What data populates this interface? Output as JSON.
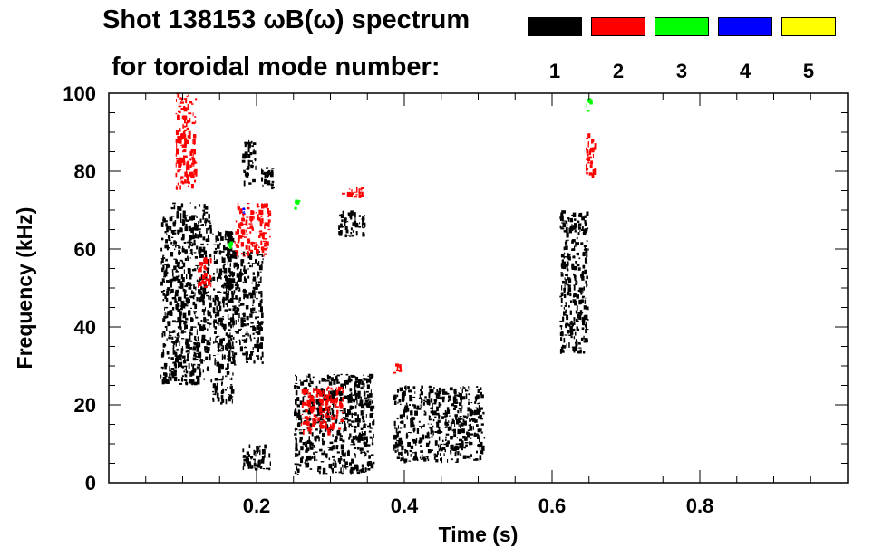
{
  "title_line1": "Shot 138153 ωB(ω) spectrum",
  "title_line2": "for toroidal mode number:",
  "legend": [
    {
      "mode": "1",
      "color": "#000000"
    },
    {
      "mode": "2",
      "color": "#ff0000"
    },
    {
      "mode": "3",
      "color": "#00ff00"
    },
    {
      "mode": "4",
      "color": "#0000ff"
    },
    {
      "mode": "5",
      "color": "#ffff00"
    }
  ],
  "chart_data": {
    "type": "heatmap",
    "title": "Shot 138153 ωB(ω) spectrum",
    "xlabel": "Time (s)",
    "ylabel": "Frequency (kHz)",
    "xlim": [
      0.0,
      1.0
    ],
    "ylim": [
      0,
      100
    ],
    "xticks": [
      0.2,
      0.4,
      0.6,
      0.8
    ],
    "xtick_labels": [
      "0.2",
      "0.4",
      "0.6",
      "0.8"
    ],
    "yticks": [
      0,
      20,
      40,
      60,
      80,
      100
    ],
    "ytick_labels": [
      "0",
      "20",
      "40",
      "60",
      "80",
      "100"
    ],
    "grid": false,
    "series": [
      {
        "name": "1",
        "color": "#000000",
        "regions": [
          {
            "t": [
              0.07,
              0.14
            ],
            "f": [
              25,
              72
            ]
          },
          {
            "t": [
              0.14,
              0.17
            ],
            "f": [
              20,
              65
            ]
          },
          {
            "t": [
              0.18,
              0.2
            ],
            "f": [
              76,
              88
            ]
          },
          {
            "t": [
              0.205,
              0.225
            ],
            "f": [
              75,
              82
            ]
          },
          {
            "t": [
              0.16,
              0.21
            ],
            "f": [
              30,
              60
            ]
          },
          {
            "t": [
              0.18,
              0.22
            ],
            "f": [
              3,
              10
            ]
          },
          {
            "t": [
              0.25,
              0.36
            ],
            "f": [
              2,
              28
            ]
          },
          {
            "t": [
              0.31,
              0.35
            ],
            "f": [
              63,
              70
            ]
          },
          {
            "t": [
              0.385,
              0.51
            ],
            "f": [
              5,
              25
            ]
          },
          {
            "t": [
              0.61,
              0.65
            ],
            "f": [
              33,
              70
            ]
          }
        ]
      },
      {
        "name": "2",
        "color": "#ff0000",
        "regions": [
          {
            "t": [
              0.09,
              0.12
            ],
            "f": [
              75,
              100
            ]
          },
          {
            "t": [
              0.12,
              0.14
            ],
            "f": [
              50,
              58
            ]
          },
          {
            "t": [
              0.17,
              0.22
            ],
            "f": [
              58,
              72
            ]
          },
          {
            "t": [
              0.315,
              0.345
            ],
            "f": [
              73,
              76
            ]
          },
          {
            "t": [
              0.26,
              0.32
            ],
            "f": [
              12,
              25
            ]
          },
          {
            "t": [
              0.385,
              0.4
            ],
            "f": [
              28,
              31
            ]
          },
          {
            "t": [
              0.645,
              0.66
            ],
            "f": [
              78,
              90
            ]
          }
        ]
      },
      {
        "name": "3",
        "color": "#00ff00",
        "regions": [
          {
            "t": [
              0.25,
              0.26
            ],
            "f": [
              70,
              73
            ]
          },
          {
            "t": [
              0.645,
              0.655
            ],
            "f": [
              95,
              99
            ]
          },
          {
            "t": [
              0.16,
              0.17
            ],
            "f": [
              60,
              62
            ]
          }
        ]
      },
      {
        "name": "4",
        "color": "#0000ff",
        "regions": [
          {
            "t": [
              0.18,
              0.185
            ],
            "f": [
              69,
              71
            ]
          }
        ]
      },
      {
        "name": "5",
        "color": "#ffff00",
        "regions": []
      }
    ]
  }
}
